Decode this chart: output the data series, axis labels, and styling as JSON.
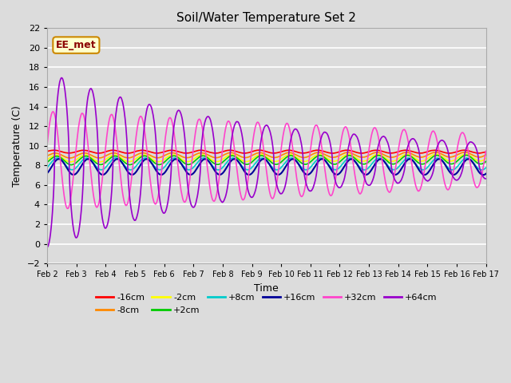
{
  "title": "Soil/Water Temperature Set 2",
  "xlabel": "Time",
  "ylabel": "Temperature (C)",
  "ylim": [
    -2,
    22
  ],
  "xlim": [
    0,
    15
  ],
  "bg_color": "#dcdcdc",
  "annotation_text": "EE_met",
  "annotation_bg": "#ffffcc",
  "annotation_border": "#cc8800",
  "colors": {
    "-16cm": "#ff0000",
    "-8cm": "#ff8800",
    "-2cm": "#ffff00",
    "+2cm": "#00cc00",
    "+8cm": "#00cccc",
    "+16cm": "#000099",
    "+32cm": "#ff44cc",
    "+64cm": "#9900cc"
  },
  "tick_labels": [
    "Feb 2",
    "Feb 3",
    "Feb 4",
    "Feb 5",
    "Feb 6",
    "Feb 7",
    "Feb 8",
    "Feb 9",
    "Feb 10",
    "Feb 11",
    "Feb 12",
    "Feb 13",
    "Feb 14",
    "Feb 15",
    "Feb 16",
    "Feb 17"
  ],
  "legend_order": [
    "-16cm",
    "-8cm",
    "-2cm",
    "+2cm",
    "+8cm",
    "+16cm",
    "+32cm",
    "+64cm"
  ]
}
